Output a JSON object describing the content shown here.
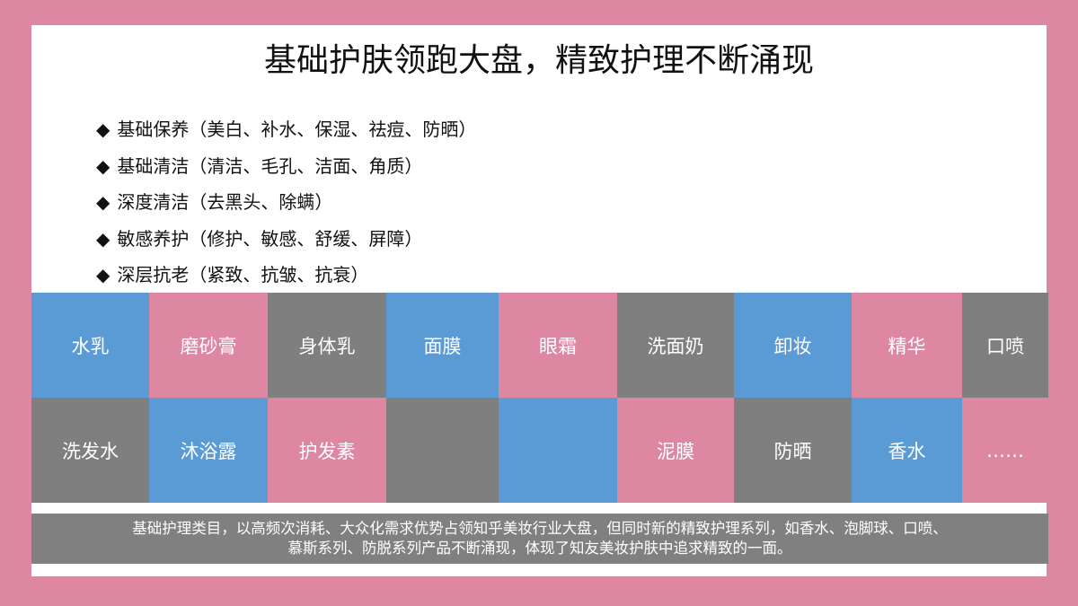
{
  "title": "基础护肤领跑大盘，精致护理不断涌现",
  "bullets": [
    "基础保养（美白、补水、保湿、祛痘、防晒）",
    "基础清洁（清洁、毛孔、洁面、角质）",
    "深度清洁（去黑头、除螨）",
    "敏感养护（修护、敏感、舒缓、屏障）",
    "深层抗老（紧致、抗皱、抗衰）"
  ],
  "tiles": [
    [
      {
        "label": "水乳",
        "color": "#5b9bd5"
      },
      {
        "label": "磨砂膏",
        "color": "#dd87a3"
      },
      {
        "label": "身体乳",
        "color": "#7f7f7f"
      },
      {
        "label": "面膜",
        "color": "#5b9bd5"
      },
      {
        "label": "眼霜",
        "color": "#dd87a3"
      },
      {
        "label": "洗面奶",
        "color": "#7f7f7f"
      },
      {
        "label": "卸妆",
        "color": "#5b9bd5"
      },
      {
        "label": "精华",
        "color": "#dd87a3"
      },
      {
        "label": "口喷",
        "color": "#7f7f7f"
      }
    ],
    [
      {
        "label": "洗发水",
        "color": "#7f7f7f"
      },
      {
        "label": "沐浴露",
        "color": "#5b9bd5"
      },
      {
        "label": "护发素",
        "color": "#dd87a3"
      },
      {
        "label": null,
        "color": "#7f7f7f"
      },
      {
        "label": null,
        "color": "#5b9bd5"
      },
      {
        "label": "泥膜",
        "color": "#dd87a3"
      },
      {
        "label": "防晒",
        "color": "#7f7f7f"
      },
      {
        "label": "香水",
        "color": "#5b9bd5"
      },
      {
        "label": "……",
        "color": "#dd87a3"
      }
    ]
  ],
  "caption": [
    "基础护理类目，以高频次消耗、大众化需求优势占领知乎美妆行业大盘，但同时新的精致护理系列，如香水、泡脚球、口喷、",
    "慕斯系列、防脱系列产品不断涌现，体现了知友美妆护肤中追求精致的一面。"
  ]
}
